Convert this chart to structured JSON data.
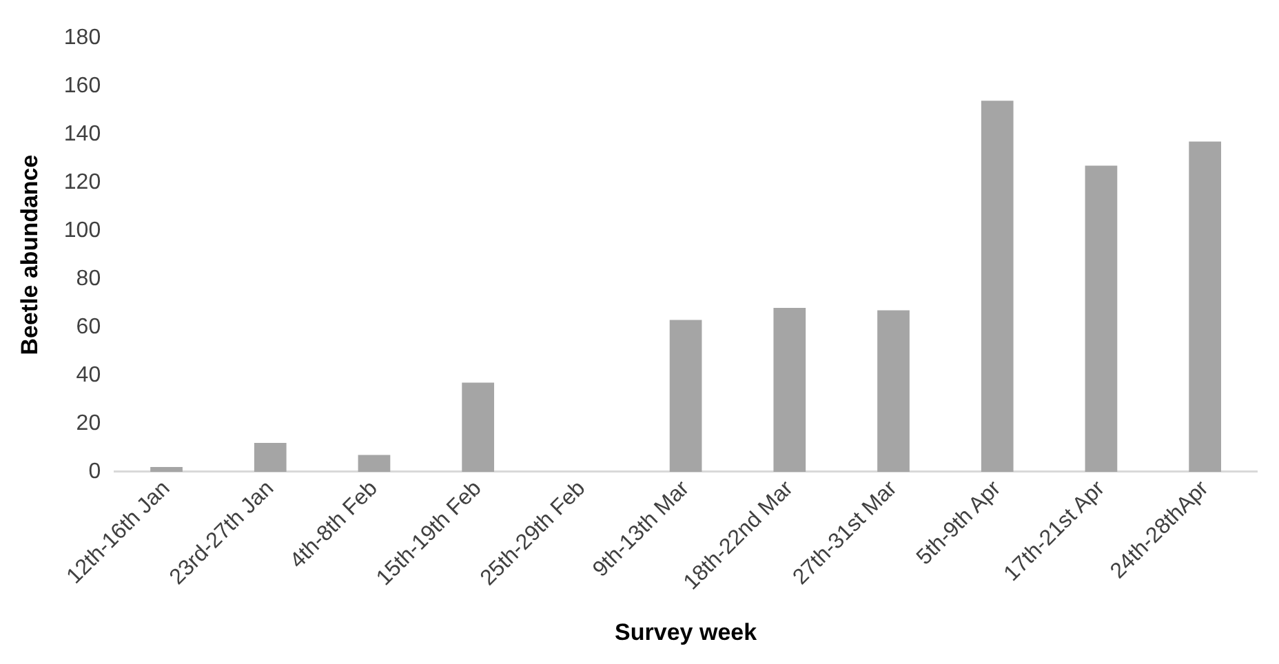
{
  "chart_data": {
    "type": "bar",
    "xlabel": "Survey week",
    "ylabel": "Beetle abundance",
    "categories": [
      "12th-16th Jan",
      "23rd-27th Jan",
      "4th-8th Feb",
      "15th-19th Feb",
      "25th-29th Feb",
      "9th-13th Mar",
      "18th-22nd Mar",
      "27th-31st Mar",
      "5th-9th Apr",
      "17th-21st Apr",
      "24th-28thApr"
    ],
    "values": [
      2,
      12,
      7,
      37,
      0,
      63,
      68,
      67,
      154,
      127,
      137
    ],
    "color": "#a5a5a5",
    "ylim": [
      0,
      180
    ],
    "yticks": [
      0,
      20,
      40,
      60,
      80,
      100,
      120,
      140,
      160,
      180
    ],
    "grid": false,
    "legend": false
  }
}
